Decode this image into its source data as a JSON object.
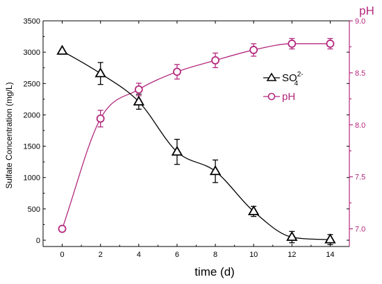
{
  "chart_data": {
    "type": "line",
    "x": [
      0,
      2,
      4,
      6,
      8,
      10,
      12,
      14
    ],
    "xlabel": "time (d)",
    "ylabel_left": "Sulfate Concentration (mg/L)",
    "ylabel_right": "pH",
    "xlim": [
      -1,
      15
    ],
    "ylim_left": [
      -100,
      3500
    ],
    "ylim_right": [
      6.83,
      9.0
    ],
    "x_ticks": [
      "0",
      "2",
      "4",
      "6",
      "8",
      "10",
      "12",
      "14"
    ],
    "y_left_ticks": [
      "0",
      "500",
      "1000",
      "1500",
      "2000",
      "2500",
      "3000",
      "3500"
    ],
    "y_right_ticks": [
      "7.0",
      "7.5",
      "8.0",
      "8.5",
      "9.0"
    ],
    "grid": false,
    "legend_position": "right-middle",
    "series": [
      {
        "name": "SO",
        "name_sub": "4",
        "name_sup": "2-",
        "axis": "left",
        "marker": "triangle",
        "color": "#000000",
        "values": [
          3020,
          2660,
          2210,
          1410,
          1100,
          460,
          50,
          10
        ],
        "errors": [
          0,
          175,
          120,
          200,
          180,
          80,
          90,
          80
        ]
      },
      {
        "name": "pH",
        "axis": "right",
        "marker": "circle",
        "color": "#b3287d",
        "values": [
          7.0,
          8.06,
          8.34,
          8.51,
          8.62,
          8.72,
          8.78,
          8.78
        ],
        "errors": [
          0,
          0.08,
          0.06,
          0.07,
          0.07,
          0.06,
          0.05,
          0.05
        ]
      }
    ]
  }
}
